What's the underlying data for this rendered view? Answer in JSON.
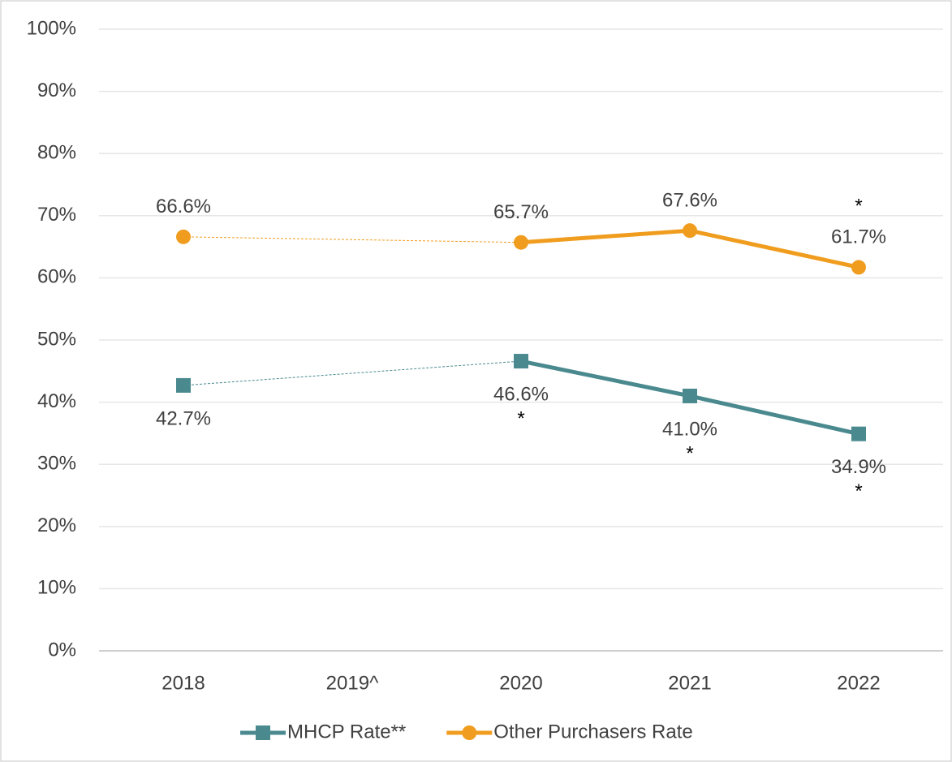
{
  "chart_data": {
    "type": "line",
    "categories": [
      "2018",
      "2019^",
      "2020",
      "2021",
      "2022"
    ],
    "series": [
      {
        "name": "MHCP Rate**",
        "color": "#4a8a8f",
        "marker": "square",
        "label_position": "below",
        "values": [
          42.7,
          null,
          46.6,
          41.0,
          34.9
        ],
        "value_labels": [
          "42.7%",
          null,
          "46.6%",
          "41.0%",
          "34.9%"
        ],
        "significance": [
          null,
          null,
          "*",
          "*",
          "*"
        ]
      },
      {
        "name": "Other Purchasers Rate",
        "color": "#f09d1f",
        "marker": "circle",
        "label_position": "above",
        "values": [
          66.6,
          null,
          65.7,
          67.6,
          61.7
        ],
        "value_labels": [
          "66.6%",
          null,
          "65.7%",
          "67.6%",
          "61.7%"
        ],
        "significance": [
          null,
          null,
          null,
          null,
          "*"
        ]
      }
    ],
    "ylim": [
      0,
      100
    ],
    "yticks": [
      {
        "value": 0,
        "label": "0%"
      },
      {
        "value": 10,
        "label": "10%"
      },
      {
        "value": 20,
        "label": "20%"
      },
      {
        "value": 30,
        "label": "30%"
      },
      {
        "value": 40,
        "label": "40%"
      },
      {
        "value": 50,
        "label": "50%"
      },
      {
        "value": 60,
        "label": "60%"
      },
      {
        "value": 70,
        "label": "70%"
      },
      {
        "value": 80,
        "label": "80%"
      },
      {
        "value": 90,
        "label": "90%"
      },
      {
        "value": 100,
        "label": "100%"
      }
    ],
    "grid": true,
    "legend": "bottom"
  }
}
